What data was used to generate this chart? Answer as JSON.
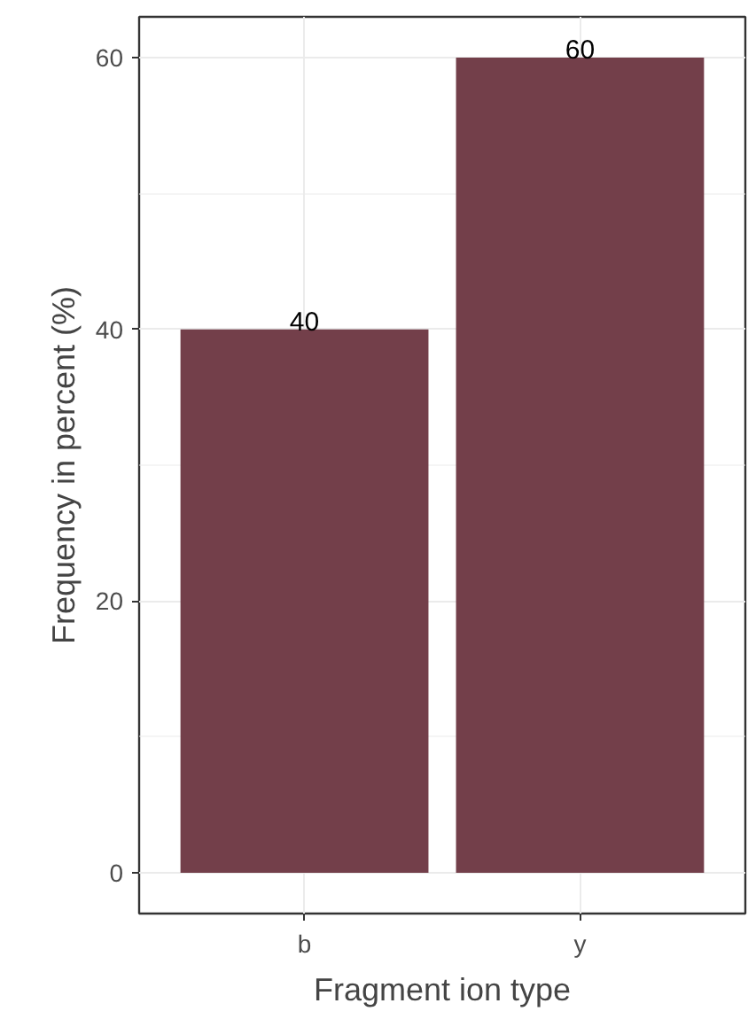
{
  "chart_data": {
    "type": "bar",
    "categories": [
      "b",
      "y"
    ],
    "values": [
      40,
      60
    ],
    "color": "#733f4a",
    "xlabel": "Fragment ion type",
    "ylabel": "Frequency in percent (%)",
    "ylim": [
      -3,
      63
    ],
    "yticks": [
      0,
      20,
      40,
      60
    ],
    "grid": true,
    "data_labels": true
  }
}
